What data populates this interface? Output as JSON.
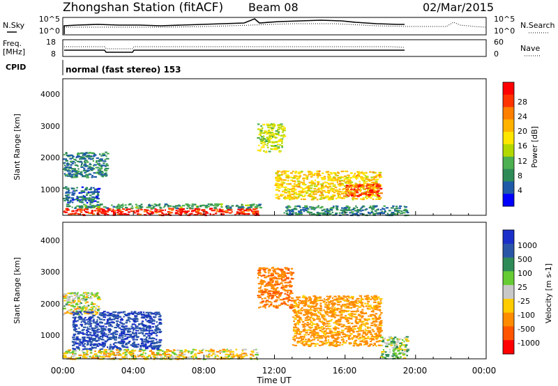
{
  "header": {
    "station": "Zhongshan Station (fitACF)",
    "beam": "Beam 08",
    "date": "02/Mar/2015"
  },
  "mode_label": "normal (fast stereo) 153",
  "noise_panel": {
    "left_label": "N.Sky",
    "left_ticks": [
      "10^5",
      "10^0"
    ],
    "right_label": "N.Search",
    "right_ticks": [
      "10^5",
      "10^0"
    ]
  },
  "freq_panel": {
    "left_label_1": "Freq.",
    "left_label_2": "[MHz]",
    "left_ticks": [
      "18",
      "8"
    ],
    "right_label": "Nave",
    "right_ticks": [
      "60",
      "0"
    ]
  },
  "cpid_label": "CPID",
  "xaxis": {
    "label": "Time UT",
    "ticks": [
      "00:00",
      "04:00",
      "08:00",
      "12:00",
      "16:00",
      "20:00",
      "00:00"
    ]
  },
  "power_panel": {
    "ylabel": "Slant Range [km]",
    "yticks": [
      "4000",
      "3000",
      "2000",
      "1000"
    ],
    "colorbar_label": "Power [dB]",
    "colorbar_ticks": [
      "28",
      "24",
      "20",
      "16",
      "12",
      "8",
      "4"
    ],
    "colorbar_colors": [
      "#ff0000",
      "#ff3300",
      "#ff7f00",
      "#ffb200",
      "#ffe600",
      "#b2d800",
      "#4caf50",
      "#2e8b57",
      "#1e5aa8",
      "#0000ff"
    ]
  },
  "velocity_panel": {
    "ylabel": "Slant Range [km]",
    "yticks": [
      "4000",
      "3000",
      "2000",
      "1000"
    ],
    "colorbar_label": "Velocity [m s-1]",
    "colorbar_ticks": [
      "1000",
      "500",
      "100",
      "25",
      "-25",
      "-100",
      "-500",
      "-1000"
    ],
    "colorbar_colors": [
      "#1a2fc8",
      "#2a56a8",
      "#2e8b57",
      "#66cc33",
      "#c8c8c8",
      "#ffcc00",
      "#ff8c00",
      "#ff5500",
      "#ff0000"
    ]
  },
  "chart_data": {
    "type": "heatmap",
    "x_range_hours": [
      0,
      24
    ],
    "y_range_km": [
      180,
      4500
    ],
    "power_bands": [
      {
        "t_start": 0.0,
        "t_end": 11.2,
        "r_start": 200,
        "r_end": 420,
        "db": 28
      },
      {
        "t_start": 0.0,
        "t_end": 11.2,
        "r_start": 420,
        "r_end": 560,
        "db": 8
      },
      {
        "t_start": 0.0,
        "t_end": 2.0,
        "r_start": 600,
        "r_end": 1100,
        "db": 4
      },
      {
        "t_start": 0.0,
        "t_end": 2.5,
        "r_start": 1400,
        "r_end": 2200,
        "db": 6
      },
      {
        "t_start": 12.0,
        "t_end": 18.0,
        "r_start": 700,
        "r_end": 1600,
        "db": 18
      },
      {
        "t_start": 16.0,
        "t_end": 18.0,
        "r_start": 800,
        "r_end": 1200,
        "db": 26
      },
      {
        "t_start": 11.0,
        "t_end": 12.5,
        "r_start": 2200,
        "r_end": 3100,
        "db": 14
      },
      {
        "t_start": 12.5,
        "t_end": 19.5,
        "r_start": 200,
        "r_end": 500,
        "db": 6
      }
    ],
    "velocity_bands": [
      {
        "t_start": 0.0,
        "t_end": 2.0,
        "r_start": 1600,
        "r_end": 2300,
        "v": 0
      },
      {
        "t_start": 0.0,
        "t_end": 11.0,
        "r_start": 180,
        "r_end": 500,
        "v": -60
      },
      {
        "t_start": 0.5,
        "t_end": 5.5,
        "r_start": 500,
        "r_end": 1700,
        "v": 700
      },
      {
        "t_start": 11.0,
        "t_end": 13.0,
        "r_start": 1800,
        "r_end": 3100,
        "v": -300
      },
      {
        "t_start": 13.0,
        "t_end": 18.0,
        "r_start": 600,
        "r_end": 2200,
        "v": -200
      },
      {
        "t_start": 18.0,
        "t_end": 19.5,
        "r_start": 200,
        "r_end": 900,
        "v": 60
      }
    ]
  }
}
